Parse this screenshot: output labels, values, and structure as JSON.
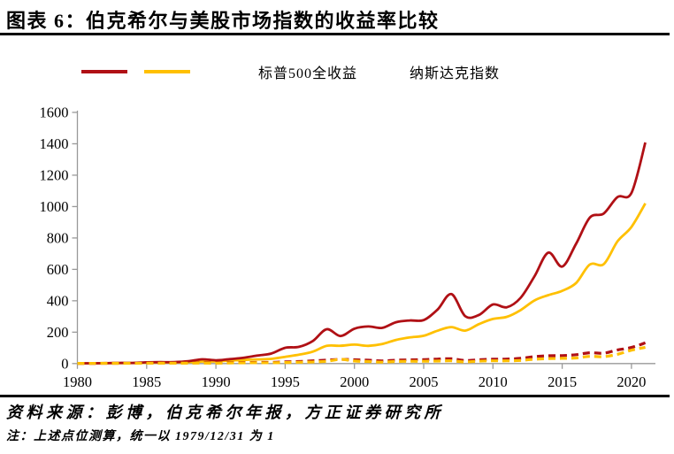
{
  "header": {
    "title": "图表 6：伯克希尔与美股市场指数的收益率比较"
  },
  "colors": {
    "dark_red": "#B01015",
    "gold": "#FFC000",
    "axis": "#999999",
    "text": "#000000"
  },
  "legend": {
    "items": [
      {
        "name": "series-solid-red",
        "label": "",
        "color": "#B01015",
        "dash": false
      },
      {
        "name": "series-solid-yellow",
        "label": "",
        "color": "#FFC000",
        "dash": false
      },
      {
        "name": "series-sp500-total-return",
        "label": "标普500全收益",
        "color": "#B01015",
        "dash": true
      },
      {
        "name": "series-nasdaq-index",
        "label": "纳斯达克指数",
        "color": "#FFC000",
        "dash": true
      }
    ]
  },
  "chart_data": {
    "type": "line",
    "title": "",
    "xlabel": "",
    "ylabel": "",
    "x": [
      1980,
      1981,
      1982,
      1983,
      1984,
      1985,
      1986,
      1987,
      1988,
      1989,
      1990,
      1991,
      1992,
      1993,
      1994,
      1995,
      1996,
      1997,
      1998,
      1999,
      2000,
      2001,
      2002,
      2003,
      2004,
      2005,
      2006,
      2007,
      2008,
      2009,
      2010,
      2011,
      2012,
      2013,
      2014,
      2015,
      2016,
      2017,
      2018,
      2019,
      2020,
      2021
    ],
    "series": [
      {
        "id": "solid-red-berkshire",
        "label": "",
        "color": "#B01015",
        "dash": false,
        "width": 2.8,
        "values": [
          1.3,
          1.8,
          2.4,
          4.1,
          4.0,
          7.7,
          8.8,
          9.2,
          14.7,
          27.1,
          20.9,
          28.3,
          36.7,
          51.0,
          63.8,
          100.3,
          106.6,
          143.8,
          218.8,
          175.3,
          221.9,
          236.3,
          227.3,
          263.3,
          274.7,
          277.0,
          343.7,
          442.5,
          301.9,
          310.0,
          376.4,
          358.6,
          418.9,
          556.0,
          706.3,
          618.1,
          762.9,
          930.0,
          956.3,
          1061.2,
          1086.9,
          1408.3
        ]
      },
      {
        "id": "solid-yellow",
        "label": "",
        "color": "#FFC000",
        "dash": false,
        "width": 2.8,
        "values": [
          1.2,
          1.6,
          2.2,
          2.9,
          3.3,
          4.9,
          6.2,
          7.4,
          8.8,
          12.8,
          13.7,
          19.2,
          23.0,
          26.3,
          30.0,
          42.9,
          56.6,
          75.9,
          112.5,
          113.1,
          120.4,
          113.0,
          124.3,
          150.4,
          166.2,
          176.8,
          209.3,
          232.4,
          210.0,
          251.6,
          284.3,
          297.4,
          340.3,
          402.2,
          435.6,
          463.4,
          513.0,
          631.0,
          633.6,
          779.1,
          870.2,
          1020.5
        ]
      },
      {
        "id": "sp500-total-return",
        "label": "标普500全收益",
        "color": "#B01015",
        "dash": true,
        "width": 3.2,
        "values": [
          1.3,
          1.3,
          1.5,
          1.9,
          2.0,
          2.6,
          3.1,
          3.3,
          3.8,
          5.0,
          4.9,
          6.3,
          6.8,
          7.5,
          7.6,
          10.5,
          12.9,
          17.2,
          22.1,
          26.7,
          24.3,
          21.4,
          16.7,
          21.5,
          23.8,
          25.0,
          28.9,
          30.5,
          19.2,
          24.3,
          27.9,
          28.5,
          33.1,
          43.8,
          49.8,
          50.5,
          56.5,
          68.9,
          65.9,
          86.6,
          102.5,
          131.9
        ]
      },
      {
        "id": "nasdaq-index",
        "label": "纳斯达克指数",
        "color": "#FFC000",
        "dash": true,
        "width": 3.2,
        "values": [
          1.3,
          1.3,
          1.5,
          1.8,
          1.6,
          2.1,
          2.3,
          2.2,
          2.5,
          3.0,
          2.5,
          3.9,
          4.5,
          5.1,
          5.0,
          7.0,
          8.5,
          10.4,
          14.5,
          26.9,
          16.3,
          12.9,
          8.8,
          13.3,
          14.4,
          14.6,
          16.0,
          17.6,
          10.4,
          15.0,
          17.6,
          17.2,
          20.0,
          27.6,
          31.3,
          33.1,
          35.6,
          45.7,
          43.9,
          59.4,
          85.3,
          103.5
        ]
      }
    ],
    "ylim": [
      0,
      1600
    ],
    "ytick_step": 200,
    "yticks": [
      0,
      200,
      400,
      600,
      800,
      1000,
      1200,
      1400,
      1600
    ],
    "xticks": [
      1980,
      1985,
      1990,
      1995,
      2000,
      2005,
      2010,
      2015,
      2020
    ],
    "grid": false,
    "legend_position": "top"
  },
  "footer": {
    "source": "资料来源：彭博，伯克希尔年报，方正证券研究所",
    "note": "注：上述点位测算，统一以 1979/12/31 为 1"
  }
}
